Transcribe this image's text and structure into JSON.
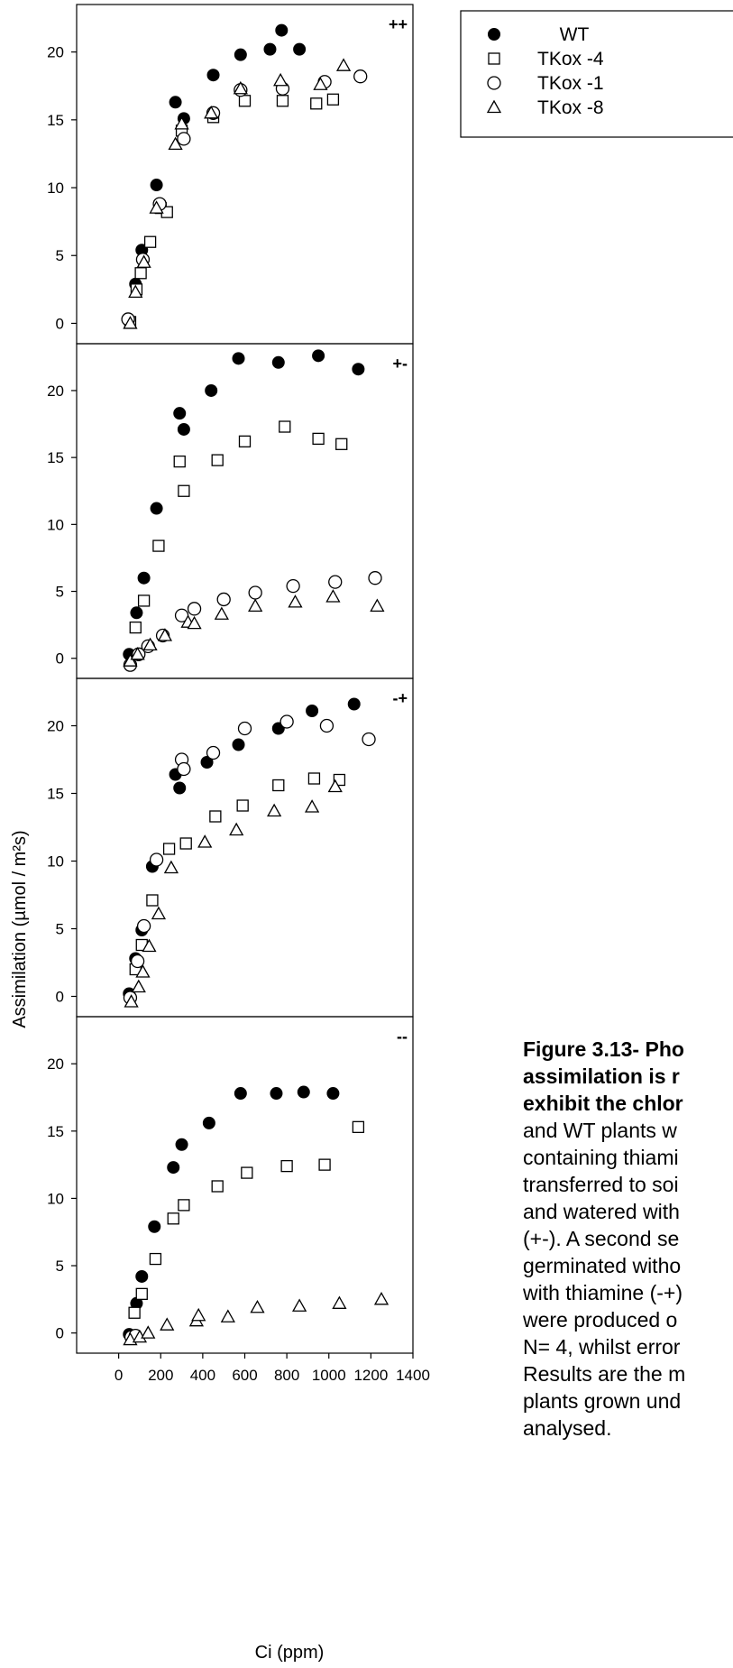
{
  "chart_data": {
    "type": "scatter",
    "xlabel": "Ci (ppm)",
    "ylabel": "Assimilation (µmol / m²s)",
    "xlim": [
      -200,
      1400
    ],
    "x_ticks": [
      0,
      200,
      400,
      600,
      800,
      1000,
      1200,
      1400
    ],
    "ylim": [
      -1.5,
      23.5
    ],
    "y_ticks": [
      0,
      5,
      10,
      15,
      20
    ],
    "legend": {
      "placement": "top-right",
      "entries": [
        {
          "label": "WT",
          "marker": "filled-circle"
        },
        {
          "label": "TKox -4",
          "marker": "open-square"
        },
        {
          "label": "TKox -1",
          "marker": "open-circle"
        },
        {
          "label": "TKox -8",
          "marker": "open-triangle"
        }
      ]
    },
    "panels": [
      {
        "label": "++",
        "series": [
          {
            "name": "WT",
            "points": [
              [
                50,
                0.2
              ],
              [
                80,
                2.9
              ],
              [
                110,
                5.4
              ],
              [
                180,
                10.2
              ],
              [
                270,
                16.3
              ],
              [
                310,
                15.1
              ],
              [
                450,
                18.3
              ],
              [
                580,
                19.8
              ],
              [
                720,
                20.2
              ],
              [
                775,
                21.6
              ],
              [
                860,
                20.2
              ]
            ]
          },
          {
            "name": "TKox -4",
            "points": [
              [
                55,
                0.1
              ],
              [
                85,
                2.5
              ],
              [
                105,
                3.7
              ],
              [
                150,
                6.0
              ],
              [
                200,
                8.5
              ],
              [
                230,
                8.2
              ],
              [
                300,
                14.2
              ],
              [
                450,
                15.2
              ],
              [
                600,
                16.4
              ],
              [
                780,
                16.4
              ],
              [
                940,
                16.2
              ],
              [
                1020,
                16.5
              ]
            ]
          },
          {
            "name": "TKox -1",
            "points": [
              [
                45,
                0.3
              ],
              [
                115,
                4.7
              ],
              [
                195,
                8.8
              ],
              [
                310,
                13.6
              ],
              [
                450,
                15.5
              ],
              [
                580,
                17.2
              ],
              [
                780,
                17.3
              ],
              [
                980,
                17.8
              ],
              [
                1150,
                18.2
              ]
            ]
          },
          {
            "name": "TKox -8",
            "points": [
              [
                55,
                0.0
              ],
              [
                80,
                2.3
              ],
              [
                120,
                4.5
              ],
              [
                180,
                8.5
              ],
              [
                270,
                13.2
              ],
              [
                300,
                14.7
              ],
              [
                440,
                15.5
              ],
              [
                580,
                17.3
              ],
              [
                770,
                17.9
              ],
              [
                960,
                17.6
              ],
              [
                1070,
                19.0
              ]
            ]
          }
        ]
      },
      {
        "label": "+-",
        "series": [
          {
            "name": "WT",
            "points": [
              [
                50,
                0.3
              ],
              [
                85,
                3.4
              ],
              [
                120,
                6.0
              ],
              [
                180,
                11.2
              ],
              [
                290,
                18.3
              ],
              [
                310,
                17.1
              ],
              [
                440,
                20.0
              ],
              [
                570,
                22.4
              ],
              [
                760,
                22.1
              ],
              [
                950,
                22.6
              ],
              [
                1140,
                21.6
              ]
            ]
          },
          {
            "name": "TKox -4",
            "points": [
              [
                80,
                2.3
              ],
              [
                120,
                4.3
              ],
              [
                190,
                8.4
              ],
              [
                290,
                14.7
              ],
              [
                310,
                12.5
              ],
              [
                470,
                14.8
              ],
              [
                600,
                16.2
              ],
              [
                790,
                17.3
              ],
              [
                950,
                16.4
              ],
              [
                1060,
                16.0
              ]
            ]
          },
          {
            "name": "TKox -1",
            "points": [
              [
                55,
                -0.5
              ],
              [
                95,
                0.3
              ],
              [
                140,
                0.9
              ],
              [
                210,
                1.7
              ],
              [
                300,
                3.2
              ],
              [
                360,
                3.7
              ],
              [
                500,
                4.4
              ],
              [
                650,
                4.9
              ],
              [
                830,
                5.4
              ],
              [
                1030,
                5.7
              ],
              [
                1220,
                6.0
              ]
            ]
          },
          {
            "name": "TKox -8",
            "points": [
              [
                55,
                -0.2
              ],
              [
                90,
                0.3
              ],
              [
                150,
                1.0
              ],
              [
                220,
                1.7
              ],
              [
                330,
                2.7
              ],
              [
                360,
                2.6
              ],
              [
                490,
                3.3
              ],
              [
                650,
                3.9
              ],
              [
                840,
                4.2
              ],
              [
                1020,
                4.6
              ],
              [
                1230,
                3.9
              ]
            ]
          }
        ]
      },
      {
        "label": "-+",
        "series": [
          {
            "name": "WT",
            "points": [
              [
                50,
                0.2
              ],
              [
                80,
                2.8
              ],
              [
                110,
                4.9
              ],
              [
                160,
                9.6
              ],
              [
                270,
                16.4
              ],
              [
                290,
                15.4
              ],
              [
                420,
                17.3
              ],
              [
                570,
                18.6
              ],
              [
                760,
                19.8
              ],
              [
                920,
                21.1
              ],
              [
                1120,
                21.6
              ]
            ]
          },
          {
            "name": "TKox -4",
            "points": [
              [
                80,
                2.0
              ],
              [
                110,
                3.8
              ],
              [
                160,
                7.1
              ],
              [
                240,
                10.9
              ],
              [
                320,
                11.3
              ],
              [
                460,
                13.3
              ],
              [
                590,
                14.1
              ],
              [
                760,
                15.6
              ],
              [
                930,
                16.1
              ],
              [
                1050,
                16.0
              ]
            ]
          },
          {
            "name": "TKox -1",
            "points": [
              [
                55,
                -0.1
              ],
              [
                90,
                2.6
              ],
              [
                120,
                5.2
              ],
              [
                180,
                10.1
              ],
              [
                300,
                17.5
              ],
              [
                310,
                16.8
              ],
              [
                450,
                18.0
              ],
              [
                600,
                19.8
              ],
              [
                800,
                20.3
              ],
              [
                990,
                20.0
              ],
              [
                1190,
                19.0
              ]
            ]
          },
          {
            "name": "TKox -8",
            "points": [
              [
                60,
                -0.4
              ],
              [
                95,
                0.7
              ],
              [
                115,
                1.8
              ],
              [
                145,
                3.7
              ],
              [
                190,
                6.1
              ],
              [
                250,
                9.5
              ],
              [
                410,
                11.4
              ],
              [
                560,
                12.3
              ],
              [
                740,
                13.7
              ],
              [
                920,
                14.0
              ],
              [
                1030,
                15.5
              ]
            ]
          }
        ]
      },
      {
        "label": "--",
        "series": [
          {
            "name": "WT",
            "points": [
              [
                50,
                -0.1
              ],
              [
                85,
                2.2
              ],
              [
                110,
                4.2
              ],
              [
                170,
                7.9
              ],
              [
                260,
                12.3
              ],
              [
                300,
                14.0
              ],
              [
                430,
                15.6
              ],
              [
                580,
                17.8
              ],
              [
                750,
                17.8
              ],
              [
                880,
                17.9
              ],
              [
                1020,
                17.8
              ]
            ]
          },
          {
            "name": "TKox -4",
            "points": [
              [
                75,
                1.5
              ],
              [
                110,
                2.9
              ],
              [
                175,
                5.5
              ],
              [
                260,
                8.5
              ],
              [
                310,
                9.5
              ],
              [
                470,
                10.9
              ],
              [
                610,
                11.9
              ],
              [
                800,
                12.4
              ],
              [
                980,
                12.5
              ],
              [
                1140,
                15.3
              ]
            ]
          },
          {
            "name": "TKox -1",
            "points": [
              [
                60,
                -0.3
              ],
              [
                80,
                -0.2
              ]
            ]
          },
          {
            "name": "TKox -8",
            "points": [
              [
                55,
                -0.5
              ],
              [
                100,
                -0.3
              ],
              [
                140,
                0.0
              ],
              [
                230,
                0.6
              ],
              [
                370,
                0.9
              ],
              [
                380,
                1.3
              ],
              [
                520,
                1.2
              ],
              [
                660,
                1.9
              ],
              [
                860,
                2.0
              ],
              [
                1050,
                2.2
              ],
              [
                1250,
                2.5
              ]
            ]
          }
        ]
      }
    ]
  },
  "caption": {
    "lines": [
      "Figure 3.13- Pho",
      "assimilation is r",
      "exhibit the chlor",
      "and WT plants w",
      "containing thiami",
      "transferred to soi",
      "and watered with",
      "(+-). A second se",
      "germinated witho",
      "with thiamine (-+)",
      "were produced o",
      "N= 4, whilst error",
      "Results are the m",
      "plants grown und",
      "analysed."
    ]
  }
}
